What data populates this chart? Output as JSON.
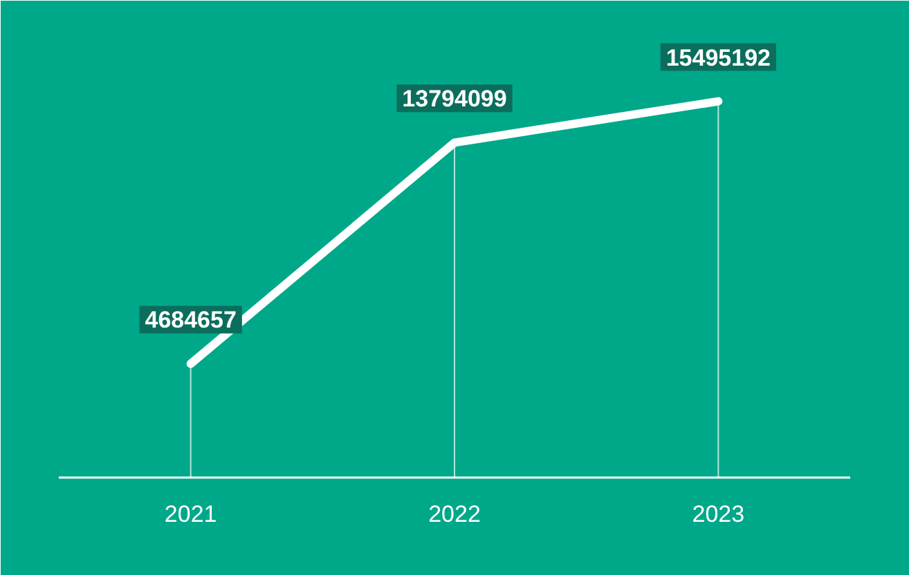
{
  "chart_data": {
    "type": "line",
    "categories": [
      "2021",
      "2022",
      "2023"
    ],
    "series": [
      {
        "color": "#ffffff",
        "values": [
          4684657,
          13794099,
          15495192
        ]
      }
    ],
    "ylim": [
      0,
      18500000
    ],
    "data_labels": true,
    "tick_labels": "x",
    "marker": "none",
    "line_style": "solid"
  }
}
